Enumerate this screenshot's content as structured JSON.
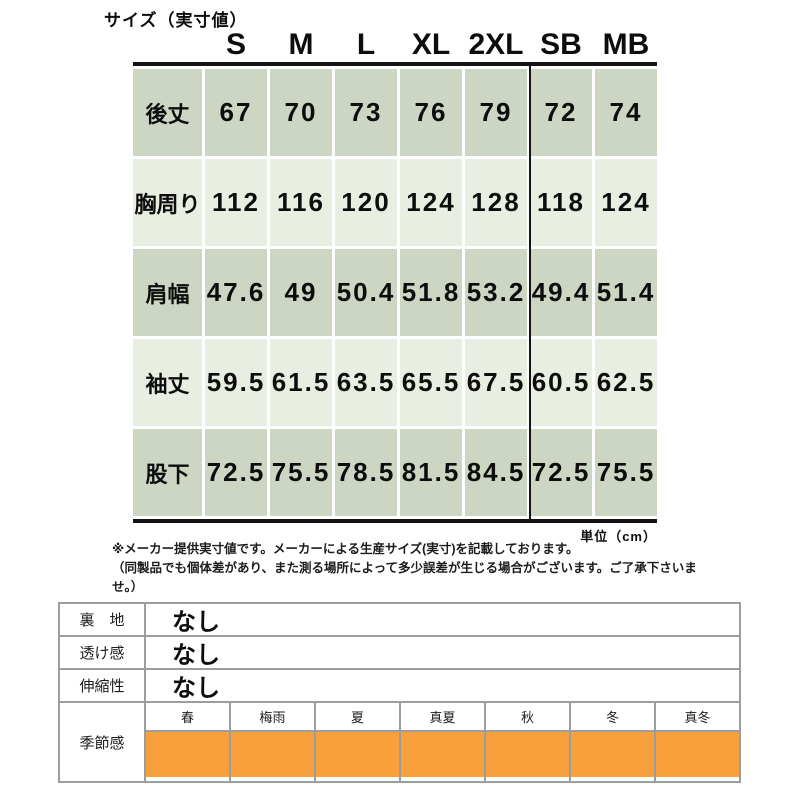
{
  "title": "サイズ（実寸値）",
  "size_table": {
    "columns": [
      "S",
      "M",
      "L",
      "XL",
      "2XL",
      "SB",
      "MB"
    ],
    "rows": [
      {
        "label": "後丈",
        "values": [
          "67",
          "70",
          "73",
          "76",
          "79",
          "72",
          "74"
        ]
      },
      {
        "label": "胸周り",
        "values": [
          "112",
          "116",
          "120",
          "124",
          "128",
          "118",
          "124"
        ]
      },
      {
        "label": "肩幅",
        "values": [
          "47.6",
          "49",
          "50.4",
          "51.8",
          "53.2",
          "49.4",
          "51.4"
        ]
      },
      {
        "label": "袖丈",
        "values": [
          "59.5",
          "61.5",
          "63.5",
          "65.5",
          "67.5",
          "60.5",
          "62.5"
        ]
      },
      {
        "label": "股下",
        "values": [
          "72.5",
          "75.5",
          "78.5",
          "81.5",
          "84.5",
          "72.5",
          "75.5"
        ]
      }
    ],
    "unit_note": "単位（cm）"
  },
  "notes": [
    "※メーカー提供実寸値です。メーカーによる生産サイズ(実寸)を記載しております。",
    "（同製品でも個体差があり、また測る場所によって多少誤差が生じる場合がございます。ご了承下さいませ。）"
  ],
  "spec_table": {
    "rows": [
      {
        "label": "裏　地",
        "value": "なし"
      },
      {
        "label": "透け感",
        "value": "なし"
      },
      {
        "label": "伸縮性",
        "value": "なし"
      }
    ],
    "season": {
      "label": "季節感",
      "columns": [
        "春",
        "梅雨",
        "夏",
        "真夏",
        "秋",
        "冬",
        "真冬"
      ],
      "highlighted": [
        true,
        true,
        true,
        true,
        true,
        true,
        true
      ]
    }
  },
  "colors": {
    "row_dark_green": "#cdd6c2",
    "row_light_green": "#e9eee2",
    "season_orange": "#f8a13c",
    "table_border_gray": "#9d9d9d",
    "line_black": "#141414"
  }
}
